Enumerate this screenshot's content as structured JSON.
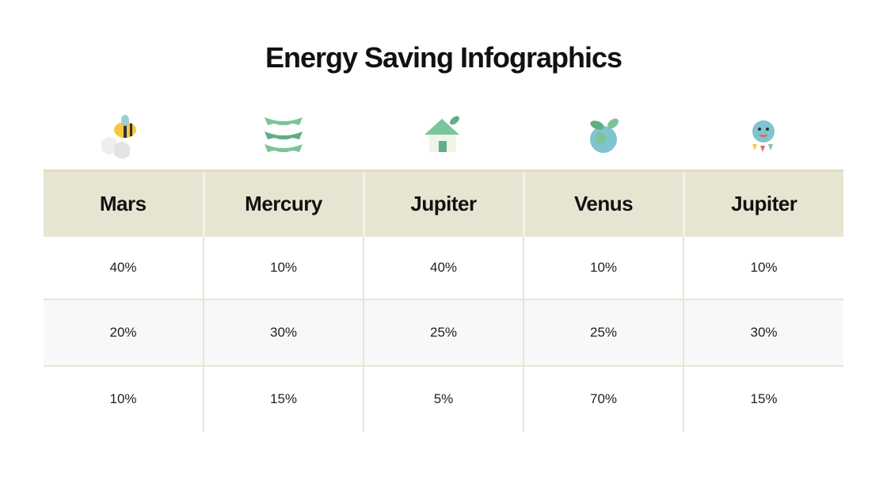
{
  "header": {
    "title": "Energy Saving Infographics"
  },
  "table": {
    "columns": [
      "Mars",
      "Mercury",
      "Jupiter",
      "Venus",
      "Jupiter"
    ],
    "rows": [
      [
        "40%",
        "10%",
        "40%",
        "10%",
        "10%"
      ],
      [
        "20%",
        "30%",
        "25%",
        "25%",
        "30%"
      ],
      [
        "10%",
        "15%",
        "5%",
        "70%",
        "15%"
      ]
    ]
  }
}
